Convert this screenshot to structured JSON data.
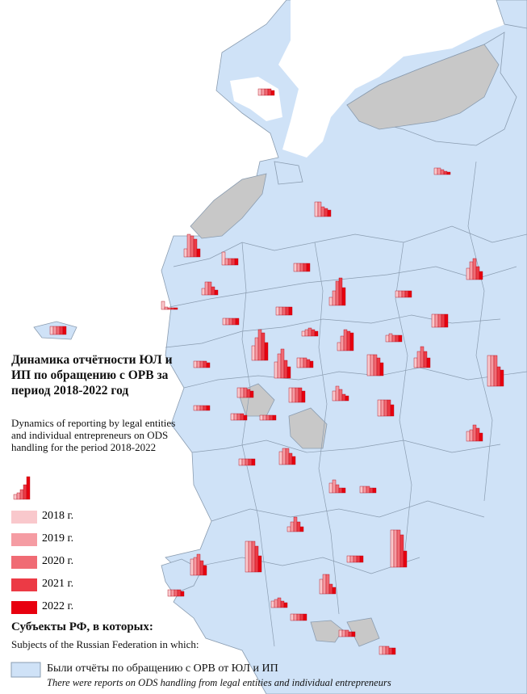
{
  "legend": {
    "title_ru": "Динамика отчётности ЮЛ и ИП по обращению с ОРВ за период 2018-2022 год",
    "title_en": "Dynamics of reporting by legal entities and individual entrepreneurs on ODS handling for the period 2018-2022",
    "years": [
      {
        "label": "2018 г.",
        "color": "#f9c8cc"
      },
      {
        "label": "2019 г.",
        "color": "#f59ca3"
      },
      {
        "label": "2020 г.",
        "color": "#f06b74"
      },
      {
        "label": "2021 г.",
        "color": "#ec3a45"
      },
      {
        "label": "2022 г.",
        "color": "#e8000f"
      }
    ],
    "subjects_ru": "Субъекты РФ, в которых:",
    "subjects_en": "Subjects of the Russian Federation in which:",
    "reports_ru": "Были отчёты по обращению с ОРВ от ЮЛ и ИП",
    "reports_en": "There were reports on ODS handling from legal entities and individual entrepreneurs",
    "reports_color": "#cfe2f7"
  }
}
